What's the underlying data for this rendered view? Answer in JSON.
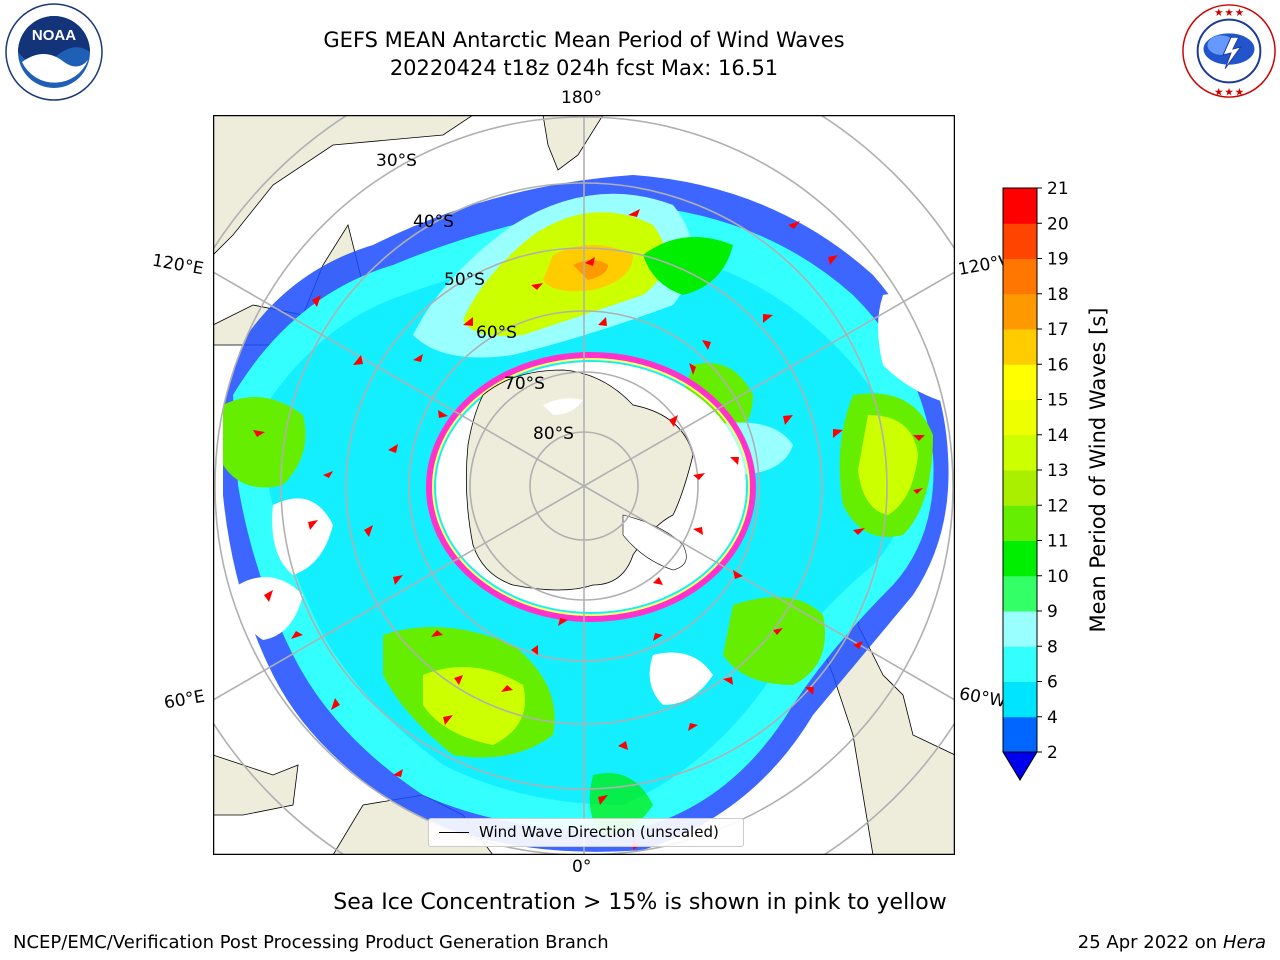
{
  "header": {
    "title_line1": "GEFS MEAN Antarctic Mean Period of Wind Waves",
    "title_line2": "20220424 t18z 024h fcst   Max: 16.51"
  },
  "logos": {
    "noaa": {
      "icon": "noaa-logo-icon",
      "text": "NOAA",
      "ring_text": "NATIONAL OCEANIC AND ATMOSPHERIC ADMINISTRATION · U.S. DEPARTMENT OF COMMERCE"
    },
    "nws": {
      "icon": "nws-logo-icon",
      "ring_text": "NATIONAL WEATHER SERVICE"
    }
  },
  "map": {
    "projection": "south-polar-stereographic",
    "longitude_labels": {
      "top": "180°",
      "bottom": "0°",
      "upper_left": "120°E",
      "upper_right": "120°W",
      "lower_left": "60°E",
      "lower_right": "60°W"
    },
    "latitude_labels": [
      "30°S",
      "40°S",
      "50°S",
      "60°S",
      "70°S",
      "80°S"
    ],
    "legend_label": "Wind Wave Direction (unscaled)",
    "colors": {
      "land": "#eeecdb",
      "ocean_none": "#ffffff",
      "graticule": "#b0b0b0",
      "arrow": "#ff0000",
      "sea_ice_low": "#ff33cc",
      "sea_ice_high": "#ffff33"
    }
  },
  "colorbar": {
    "label": "Mean Period of Wind Waves [s]",
    "ticks": [
      "2",
      "4",
      "6",
      "8",
      "9",
      "10",
      "11",
      "12",
      "13",
      "14",
      "15",
      "16",
      "17",
      "18",
      "19",
      "20",
      "21"
    ],
    "colors": [
      "#0066ff",
      "#00e5ff",
      "#33ffff",
      "#99ffff",
      "#33ff66",
      "#00ee00",
      "#66ee00",
      "#aaee00",
      "#ccff00",
      "#eeff00",
      "#ffff00",
      "#ffcc00",
      "#ff9900",
      "#ff7700",
      "#ff4400",
      "#ff0000"
    ],
    "extend_min_color": "#0000ee"
  },
  "subtitle": "Sea Ice Concentration > 15% is shown in pink to yellow",
  "footer": {
    "left": "NCEP/EMC/Verification Post Processing Product Generation Branch",
    "right_date": "25 Apr 2022 on ",
    "right_host": "Hera"
  }
}
